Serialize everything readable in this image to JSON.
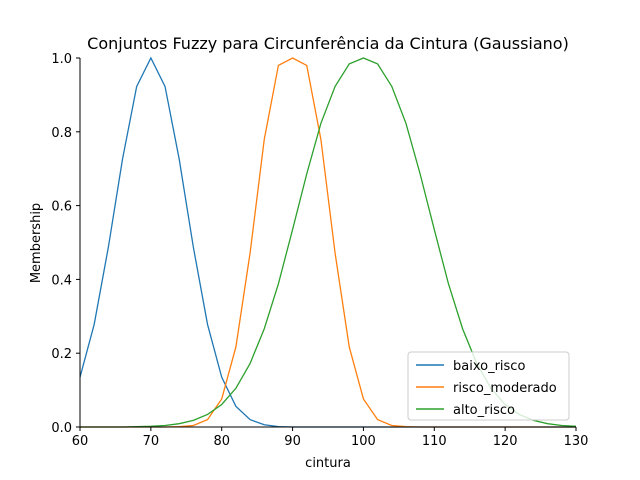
{
  "chart_data": {
    "type": "line",
    "title": "Conjuntos Fuzzy para Circunferência da Cintura (Gaussiano)",
    "xlabel": "cintura",
    "ylabel": "Membership",
    "xlim": [
      60,
      130
    ],
    "ylim": [
      0,
      1
    ],
    "xticks": [
      "60",
      "70",
      "80",
      "90",
      "100",
      "110",
      "120",
      "130"
    ],
    "yticks": [
      "0.0",
      "0.2",
      "0.4",
      "0.6",
      "0.8",
      "1.0"
    ],
    "grid": false,
    "legend_position": "lower-right",
    "x": [
      60,
      62,
      64,
      66,
      68,
      70,
      72,
      74,
      76,
      78,
      80,
      82,
      84,
      86,
      88,
      90,
      92,
      94,
      96,
      98,
      100,
      102,
      104,
      106,
      108,
      110,
      112,
      114,
      116,
      118,
      120,
      122,
      124,
      126,
      128,
      130
    ],
    "series": [
      {
        "name": "baixo_risco",
        "color": "#1f77b4",
        "values": [
          0.135,
          0.278,
          0.487,
          0.726,
          0.923,
          1.0,
          0.923,
          0.726,
          0.487,
          0.278,
          0.135,
          0.056,
          0.02,
          0.006,
          0.001,
          0.0,
          0.0,
          0.0,
          0.0,
          0.0,
          0.0,
          0.0,
          0.0,
          0.0,
          0.0,
          0.0,
          0.0,
          0.0,
          0.0,
          0.0,
          0.0,
          0.0,
          0.0,
          0.0,
          0.0,
          0.0
        ]
      },
      {
        "name": "risco_moderado",
        "color": "#ff7f0e",
        "values": [
          0.0,
          0.0,
          0.0,
          0.0,
          0.0,
          0.0,
          0.0,
          0.001,
          0.004,
          0.02,
          0.076,
          0.217,
          0.471,
          0.779,
          0.98,
          1.0,
          0.98,
          0.779,
          0.471,
          0.217,
          0.076,
          0.02,
          0.004,
          0.001,
          0.0,
          0.0,
          0.0,
          0.0,
          0.0,
          0.0,
          0.0,
          0.0,
          0.0,
          0.0,
          0.0,
          0.0
        ]
      },
      {
        "name": "alto_risco",
        "color": "#2ca02c",
        "values": [
          0.0,
          0.0,
          0.0,
          0.0,
          0.001,
          0.002,
          0.004,
          0.009,
          0.018,
          0.034,
          0.061,
          0.105,
          0.172,
          0.266,
          0.388,
          0.535,
          0.686,
          0.823,
          0.923,
          0.984,
          1.0,
          0.984,
          0.923,
          0.823,
          0.686,
          0.535,
          0.388,
          0.266,
          0.172,
          0.105,
          0.061,
          0.034,
          0.018,
          0.009,
          0.004,
          0.002
        ]
      }
    ]
  }
}
